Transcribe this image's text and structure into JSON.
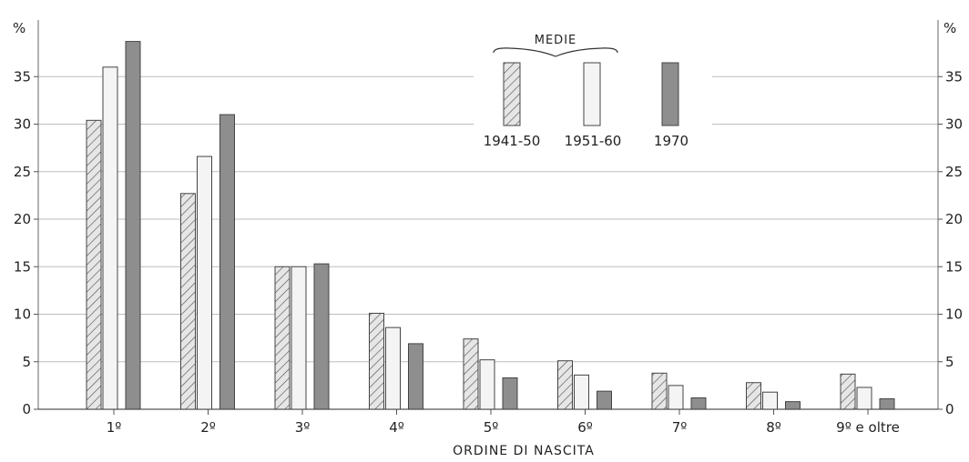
{
  "chart_data": {
    "type": "bar",
    "y_unit": "%",
    "categories": [
      "1º",
      "2º",
      "3º",
      "4º",
      "5º",
      "6º",
      "7º",
      "8º",
      "9º e oltre"
    ],
    "series": [
      {
        "name": "1941-50",
        "values": [
          30.4,
          22.7,
          15.0,
          10.1,
          7.4,
          5.1,
          3.8,
          2.8,
          3.7
        ],
        "pattern": "hatched",
        "color": "#d0d0d0"
      },
      {
        "name": "1951-60",
        "values": [
          36.0,
          26.6,
          15.0,
          8.6,
          5.2,
          3.6,
          2.5,
          1.8,
          2.3
        ],
        "pattern": "light",
        "color": "#f4f4f4"
      },
      {
        "name": "1970",
        "values": [
          38.7,
          31.0,
          15.3,
          6.9,
          3.3,
          1.9,
          1.2,
          0.8,
          1.1
        ],
        "pattern": "solid",
        "color": "#8e8e8e"
      }
    ],
    "legend_title": "MEDIE",
    "xlabel": "ORDINE DI NASCITA",
    "ylim": [
      0,
      40
    ],
    "yticks": [
      "0",
      "5",
      "10",
      "15",
      "20",
      "25",
      "30",
      "35"
    ],
    "grid": true,
    "legend_position": "top-center"
  }
}
